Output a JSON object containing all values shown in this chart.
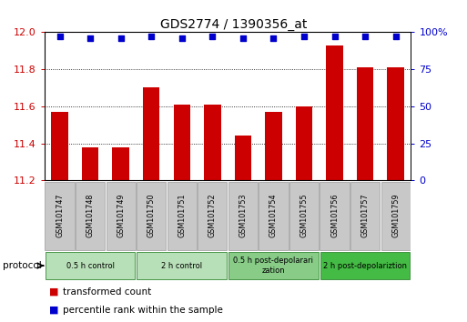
{
  "title": "GDS2774 / 1390356_at",
  "samples": [
    "GSM101747",
    "GSM101748",
    "GSM101749",
    "GSM101750",
    "GSM101751",
    "GSM101752",
    "GSM101753",
    "GSM101754",
    "GSM101755",
    "GSM101756",
    "GSM101757",
    "GSM101759"
  ],
  "bar_values": [
    11.57,
    11.38,
    11.38,
    11.7,
    11.61,
    11.61,
    11.44,
    11.57,
    11.6,
    11.93,
    11.81,
    11.81
  ],
  "percentile_values": [
    97,
    96,
    96,
    97,
    96,
    97,
    96,
    96,
    97,
    97,
    97,
    97
  ],
  "ylim_left": [
    11.2,
    12.0
  ],
  "ylim_right": [
    0,
    100
  ],
  "yticks_left": [
    11.2,
    11.4,
    11.6,
    11.8,
    12.0
  ],
  "yticks_right": [
    0,
    25,
    50,
    75,
    100
  ],
  "bar_color": "#cc0000",
  "dot_color": "#0000cc",
  "bar_width": 0.55,
  "groups": [
    {
      "label": "0.5 h control",
      "start": 0,
      "end": 3,
      "color": "#b8e0b8"
    },
    {
      "label": "2 h control",
      "start": 3,
      "end": 6,
      "color": "#b8e0b8"
    },
    {
      "label": "0.5 h post-depolarization\nzation",
      "start": 6,
      "end": 9,
      "color": "#88cc88"
    },
    {
      "label": "2 h post-depolariztion",
      "start": 9,
      "end": 12,
      "color": "#44bb44"
    }
  ],
  "legend_items": [
    {
      "label": "transformed count",
      "color": "#cc0000"
    },
    {
      "label": "percentile rank within the sample",
      "color": "#0000cc"
    }
  ],
  "sample_box_color": "#c8c8c8",
  "sample_box_edge": "#999999",
  "protocol_label": "protocol",
  "dotted_yticks": [
    11.4,
    11.6,
    11.8
  ],
  "title_fontsize": 10,
  "tick_fontsize": 8,
  "sample_fontsize": 5.8
}
